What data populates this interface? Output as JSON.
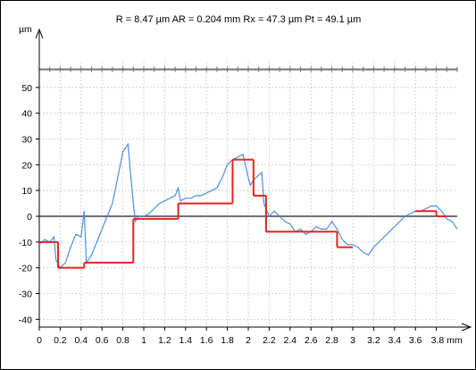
{
  "chart_data": {
    "type": "line",
    "title": "R = 8.47 µm  AR = 0.204 mm  Rx = 47.3 µm Pt = 49.1 µm",
    "ylabel": "µm",
    "xlabel": "",
    "xunit": "mm",
    "xlim": [
      0,
      4.0
    ],
    "ylim": [
      -43,
      60
    ],
    "x_ticks": [
      0,
      0.2,
      0.4,
      0.6,
      0.8,
      1,
      1.2,
      1.4,
      1.6,
      1.8,
      2,
      2.2,
      2.4,
      2.6,
      2.8,
      3,
      3.2,
      3.4,
      3.6,
      3.8
    ],
    "x_tick_labels": [
      "0",
      "0.2",
      "0.4",
      "0.6",
      "0.8",
      "1",
      "1.2",
      "1.4",
      "1.6",
      "1.8",
      "2",
      "2.2",
      "2.4",
      "2.6",
      "2.8",
      "3",
      "3.2",
      "3.4",
      "3.6",
      "3.8 mm"
    ],
    "y_ticks": [
      50,
      40,
      30,
      20,
      10,
      0,
      -10,
      -20,
      -30,
      -40
    ],
    "y_tick_labels": [
      "50",
      "40",
      "30",
      "20",
      "10",
      "0",
      "-10",
      "-20",
      "-30",
      "-40"
    ],
    "grid": true,
    "reference_lines": [
      0,
      57
    ],
    "series": [
      {
        "role": "profile",
        "color": "#4a90e2",
        "x": [
          0,
          0.05,
          0.1,
          0.14,
          0.16,
          0.2,
          0.25,
          0.3,
          0.35,
          0.4,
          0.43,
          0.45,
          0.5,
          0.55,
          0.6,
          0.65,
          0.7,
          0.75,
          0.8,
          0.85,
          0.87,
          0.9,
          0.92,
          0.95,
          1.0,
          1.05,
          1.1,
          1.15,
          1.2,
          1.25,
          1.3,
          1.33,
          1.35,
          1.4,
          1.45,
          1.5,
          1.55,
          1.6,
          1.65,
          1.7,
          1.75,
          1.8,
          1.85,
          1.9,
          1.95,
          2.0,
          2.02,
          2.05,
          2.1,
          2.13,
          2.15,
          2.2,
          2.25,
          2.3,
          2.35,
          2.4,
          2.45,
          2.5,
          2.55,
          2.6,
          2.65,
          2.7,
          2.75,
          2.8,
          2.85,
          2.9,
          2.95,
          3.0,
          3.05,
          3.1,
          3.15,
          3.2,
          3.25,
          3.3,
          3.35,
          3.4,
          3.45,
          3.5,
          3.55,
          3.6,
          3.65,
          3.7,
          3.75,
          3.8,
          3.85,
          3.9,
          3.95,
          4.0
        ],
        "values": [
          -11,
          -9,
          -10,
          -8,
          -17,
          -20,
          -18,
          -12,
          -7,
          -8,
          2,
          -18,
          -15,
          -10,
          -5,
          0,
          5,
          15,
          25,
          28,
          18,
          5,
          -2,
          0,
          0,
          1,
          3,
          5,
          6,
          7,
          8,
          11,
          6,
          7,
          7,
          8,
          8,
          9,
          10,
          11,
          15,
          20,
          22,
          23,
          24,
          15,
          12,
          14,
          16,
          17,
          5,
          0,
          2,
          0,
          -2,
          -3,
          -6,
          -5,
          -7,
          -6,
          -4,
          -5,
          -5,
          -2,
          -5,
          -9,
          -11,
          -11,
          -12,
          -14,
          -15,
          -12,
          -10,
          -8,
          -6,
          -4,
          -2,
          0,
          1,
          2,
          2,
          3,
          4,
          4,
          2,
          -1,
          -2,
          -5
        ]
      },
      {
        "role": "motifs",
        "color": "#e8221f",
        "segments": [
          {
            "x": [
              0,
              0.18
            ],
            "y": [
              -10,
              -10
            ]
          },
          {
            "x": [
              0.18,
              0.43
            ],
            "y": [
              -20,
              -20
            ]
          },
          {
            "x": [
              0.43,
              0.9
            ],
            "y": [
              -18,
              -18
            ]
          },
          {
            "x": [
              0.9,
              1.33
            ],
            "y": [
              -1,
              -1
            ]
          },
          {
            "x": [
              1.33,
              1.85
            ],
            "y": [
              5,
              5
            ]
          },
          {
            "x": [
              1.85,
              2.05
            ],
            "y": [
              22,
              22
            ]
          },
          {
            "x": [
              2.05,
              2.17
            ],
            "y": [
              8,
              8
            ]
          },
          {
            "x": [
              2.17,
              2.85
            ],
            "y": [
              -6,
              -6
            ]
          },
          {
            "x": [
              2.85,
              3.0
            ],
            "y": [
              -12,
              -12
            ]
          },
          {
            "x": [
              3.6,
              3.8
            ],
            "y": [
              2,
              2
            ]
          },
          {
            "x": [
              3.8,
              3.9
            ],
            "y": [
              0,
              0
            ]
          }
        ]
      }
    ]
  }
}
